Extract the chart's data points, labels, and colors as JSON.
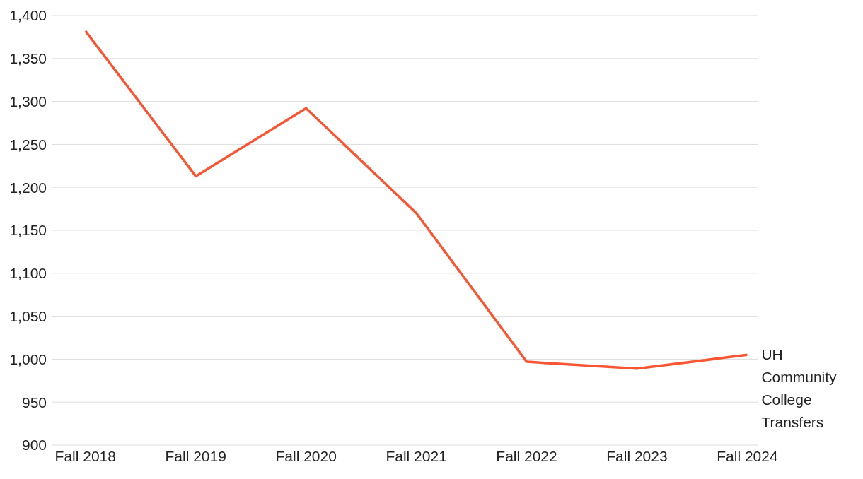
{
  "chart_data": {
    "type": "line",
    "categories": [
      "Fall 2018",
      "Fall 2019",
      "Fall 2020",
      "Fall 2021",
      "Fall 2022",
      "Fall 2023",
      "Fall 2024"
    ],
    "series": [
      {
        "name": "UH Community College Transfers",
        "color": "#fa5532",
        "values": [
          1382,
          1213,
          1292,
          1170,
          997,
          989,
          1005
        ]
      }
    ],
    "ylim": [
      900,
      1400
    ],
    "yticks": [
      900,
      950,
      {
        "value": 1000,
        "label": "1,000"
      },
      {
        "value": 1050,
        "label": "1,050"
      },
      {
        "value": 1100,
        "label": "1,100"
      },
      {
        "value": 1150,
        "label": "1,150"
      },
      {
        "value": 1200,
        "label": "1,200"
      },
      {
        "value": 1250,
        "label": "1,250"
      },
      {
        "value": 1300,
        "label": "1,300"
      },
      {
        "value": 1350,
        "label": "1,350"
      },
      {
        "value": 1400,
        "label": "1,400"
      }
    ],
    "grid": "y",
    "marker": "none",
    "line_style": "solid"
  }
}
